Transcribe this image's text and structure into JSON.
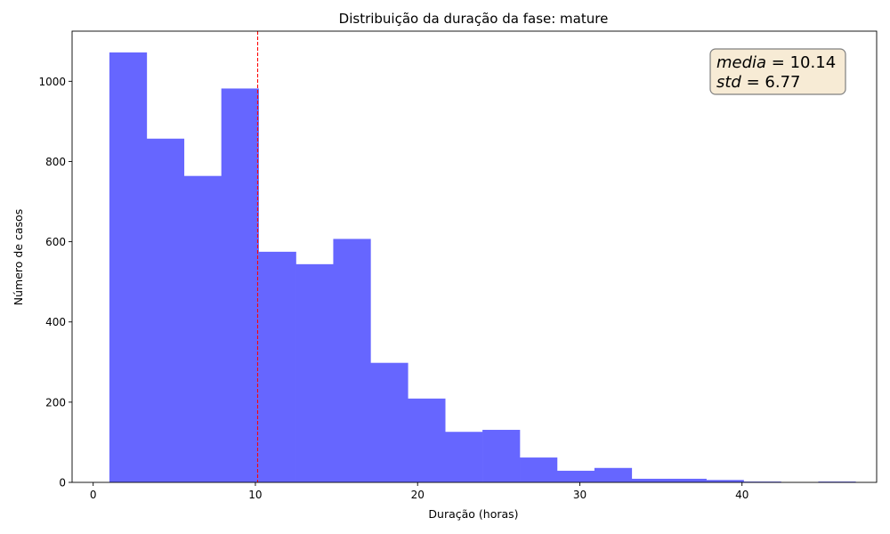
{
  "chart_data": {
    "type": "bar",
    "title": "Distribuição da duração da fase: mature",
    "xlabel": "Duração (horas)",
    "ylabel": "Número de casos",
    "xlim": [
      -1.3,
      48.3
    ],
    "ylim": [
      0,
      1125
    ],
    "xticks": [
      0,
      10,
      20,
      30,
      40
    ],
    "yticks": [
      0,
      200,
      400,
      600,
      800,
      1000
    ],
    "bin_edges": [
      1.0,
      3.3,
      5.6,
      7.9,
      10.2,
      12.5,
      14.8,
      17.1,
      19.4,
      21.7,
      24.0,
      26.3,
      28.6,
      30.9,
      33.2,
      35.5,
      37.8,
      40.1,
      42.4,
      44.7,
      47.0
    ],
    "values": [
      1072,
      857,
      764,
      982,
      575,
      544,
      607,
      298,
      209,
      126,
      131,
      62,
      29,
      36,
      9,
      9,
      6,
      2,
      0,
      2
    ],
    "bar_color": "#6666ff",
    "mean_line": {
      "x": 10.14,
      "color": "#ff0000",
      "style": "dashed"
    },
    "annotation": {
      "lines": [
        {
          "name": "media",
          "value": "10.14"
        },
        {
          "name": "std",
          "value": "6.77"
        }
      ],
      "position": "top-right",
      "box_fill": "#f7ebd5",
      "box_edge": "#7f7f7f"
    },
    "grid": false,
    "legend": "none"
  }
}
